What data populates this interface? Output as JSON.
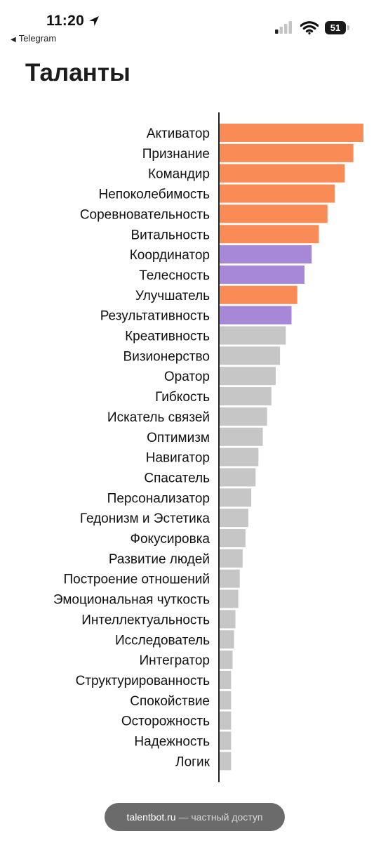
{
  "status_bar": {
    "time": "11:20",
    "back_label": "Telegram",
    "battery_level": "51",
    "icons": [
      "location-arrow-icon",
      "cellular-signal-icon",
      "wifi-icon",
      "battery-icon"
    ]
  },
  "title": "Таланты",
  "footer": {
    "site": "talentbot.ru",
    "suffix": " — частный доступ"
  },
  "colors": {
    "orange": "#f98b56",
    "purple": "#a787d8",
    "gray": "#c6c6c6",
    "axis": "#222222"
  },
  "chart_data": {
    "type": "bar",
    "orientation": "horizontal",
    "title": "",
    "xlabel": "",
    "ylabel": "",
    "xlim": [
      0,
      100
    ],
    "grid": false,
    "categories": [
      "Активатор",
      "Признание",
      "Командир",
      "Непоколебимость",
      "Соревновательность",
      "Витальность",
      "Координатор",
      "Телесность",
      "Улучшатель",
      "Результативность",
      "Креативность",
      "Визионерство",
      "Оратор",
      "Гибкость",
      "Искатель связей",
      "Оптимизм",
      "Навигатор",
      "Спасатель",
      "Персонализатор",
      "Гедонизм и Эстетика",
      "Фокусировка",
      "Развитие людей",
      "Построение отношений",
      "Эмоциональная чуткость",
      "Интеллектуальность",
      "Исследователь",
      "Интегратор",
      "Структурированность",
      "Спокойствие",
      "Осторожность",
      "Надежность",
      "Логик"
    ],
    "values": [
      100,
      93,
      87,
      80,
      75,
      69,
      64,
      59,
      54,
      50,
      46,
      42,
      39,
      36,
      33,
      30,
      27,
      25,
      22,
      20,
      18,
      16,
      14,
      13,
      11,
      10,
      9,
      8,
      8,
      8,
      8,
      8
    ],
    "bar_colors": [
      "orange",
      "orange",
      "orange",
      "orange",
      "orange",
      "orange",
      "purple",
      "purple",
      "orange",
      "purple",
      "gray",
      "gray",
      "gray",
      "gray",
      "gray",
      "gray",
      "gray",
      "gray",
      "gray",
      "gray",
      "gray",
      "gray",
      "gray",
      "gray",
      "gray",
      "gray",
      "gray",
      "gray",
      "gray",
      "gray",
      "gray",
      "gray"
    ]
  }
}
